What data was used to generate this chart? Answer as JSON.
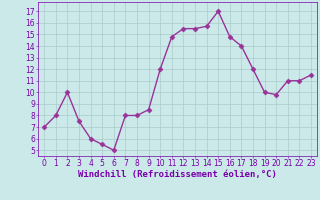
{
  "x": [
    0,
    1,
    2,
    3,
    4,
    5,
    6,
    7,
    8,
    9,
    10,
    11,
    12,
    13,
    14,
    15,
    16,
    17,
    18,
    19,
    20,
    21,
    22,
    23
  ],
  "y": [
    7,
    8,
    10,
    7.5,
    6,
    5.5,
    5,
    8,
    8,
    8.5,
    12,
    14.8,
    15.5,
    15.5,
    15.7,
    17,
    14.8,
    14,
    12,
    10,
    9.8,
    11,
    11,
    11.5
  ],
  "line_color": "#993399",
  "marker": "D",
  "markersize": 2.5,
  "linewidth": 1.0,
  "background_color": "#cce9e9",
  "grid_color": "#aacccc",
  "xlabel": "Windchill (Refroidissement éolien,°C)",
  "xlabel_fontsize": 6.5,
  "tick_color": "#7700aa",
  "tick_fontsize": 5.5,
  "ylim": [
    4.5,
    17.8
  ],
  "xlim": [
    -0.5,
    23.5
  ],
  "yticks": [
    5,
    6,
    7,
    8,
    9,
    10,
    11,
    12,
    13,
    14,
    15,
    16,
    17
  ],
  "xticks": [
    0,
    1,
    2,
    3,
    4,
    5,
    6,
    7,
    8,
    9,
    10,
    11,
    12,
    13,
    14,
    15,
    16,
    17,
    18,
    19,
    20,
    21,
    22,
    23
  ]
}
